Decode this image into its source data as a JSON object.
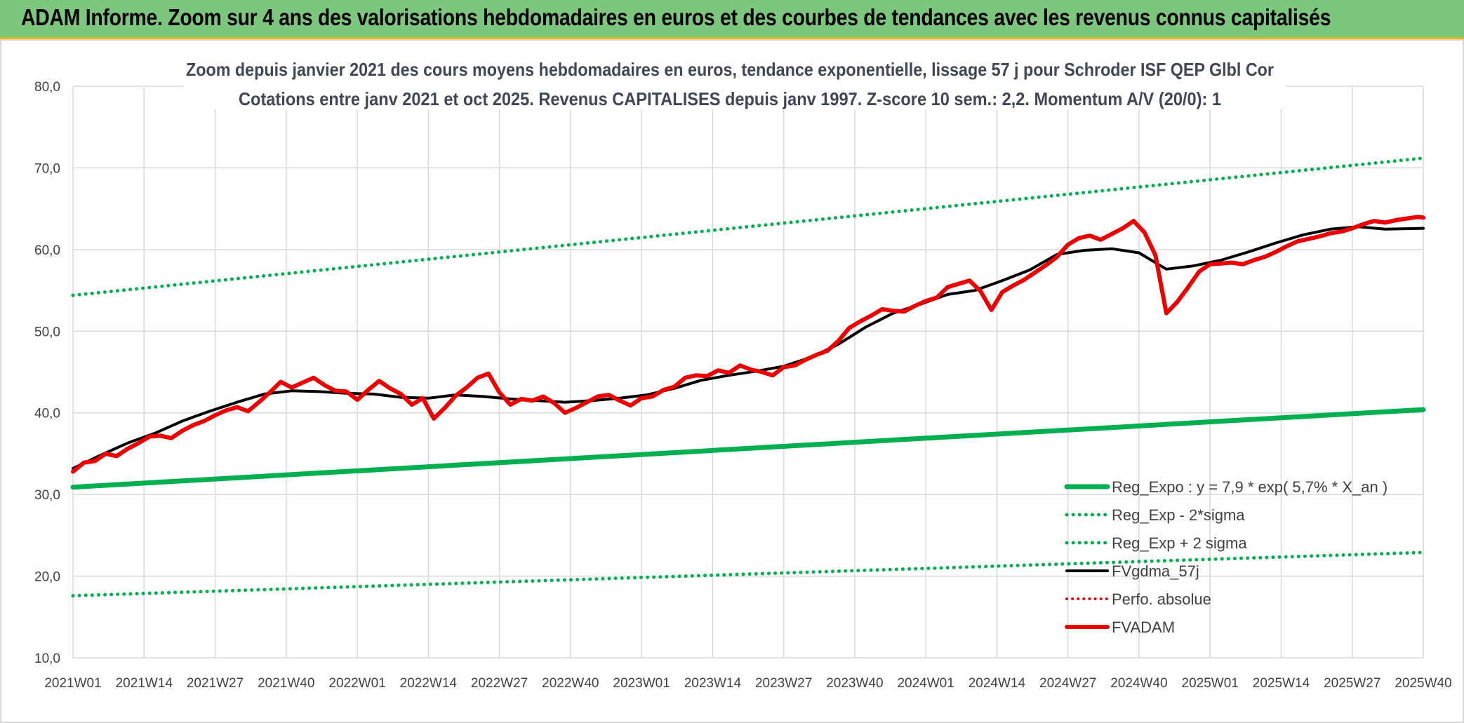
{
  "banner": {
    "title": "ADAM Informe. Zoom sur 4 ans des valorisations hebdomadaires en euros et des courbes de tendances avec les revenus connus capitalisés"
  },
  "colors": {
    "banner_bg": "#7dc67d",
    "green": "#00b050",
    "black": "#000000",
    "red": "#ee0000",
    "grid": "#d9d9d9"
  },
  "chart_data": {
    "type": "line",
    "title": "Zoom depuis janvier 2021 des cours moyens hebdomadaires en euros, tendance exponentielle, lissage 57 j pour Schroder ISF QEP Glbl Cor",
    "subtitle": "Cotations entre janv 2021 et oct 2025. Revenus CAPITALISES depuis janv 1997. Z-score 10 sem.: 2,2. Momentum A/V (20/0): 1",
    "ylim": [
      10,
      80
    ],
    "y_ticks": [
      "10,0",
      "20,0",
      "30,0",
      "40,0",
      "50,0",
      "60,0",
      "70,0",
      "80,0"
    ],
    "x_ticks": [
      "2021W01",
      "2021W14",
      "2021W27",
      "2021W40",
      "2022W01",
      "2022W14",
      "2022W27",
      "2022W40",
      "2023W01",
      "2023W14",
      "2023W27",
      "2023W40",
      "2024W01",
      "2024W14",
      "2024W27",
      "2024W40",
      "2025W01",
      "2025W14",
      "2025W27",
      "2025W40"
    ],
    "grid": true,
    "legend_position": "bottom-right",
    "series": [
      {
        "name": "Reg_Expo : y = 7,9 * exp( 5,7% *  X_an )",
        "style": "solid-thick-green",
        "x": [
          0,
          247
        ],
        "y": [
          30.9,
          40.4
        ]
      },
      {
        "name": "Reg_Exp - 2*sigma",
        "style": "dotted-green",
        "x": [
          0,
          247
        ],
        "y": [
          17.6,
          22.9
        ]
      },
      {
        "name": "Reg_Exp + 2 sigma",
        "style": "dotted-green",
        "x": [
          0,
          247
        ],
        "y": [
          54.4,
          71.2
        ]
      },
      {
        "name": "FVgdma_57j",
        "style": "solid-black",
        "x": [
          0,
          5,
          10,
          15,
          20,
          25,
          30,
          35,
          40,
          45,
          50,
          55,
          60,
          65,
          70,
          75,
          80,
          85,
          90,
          95,
          100,
          105,
          110,
          115,
          120,
          125,
          130,
          135,
          140,
          145,
          150,
          155,
          160,
          165,
          170,
          175,
          180,
          185,
          190,
          195,
          200,
          205,
          210,
          215,
          220,
          225,
          230,
          235,
          240,
          247
        ],
        "y": [
          33.2,
          34.8,
          36.3,
          37.5,
          39.0,
          40.2,
          41.3,
          42.3,
          42.7,
          42.6,
          42.4,
          42.3,
          41.9,
          41.8,
          42.2,
          42.0,
          41.7,
          41.5,
          41.3,
          41.5,
          41.8,
          42.2,
          43.0,
          44.0,
          44.6,
          45.1,
          45.7,
          46.8,
          48.4,
          50.5,
          52.2,
          53.3,
          54.5,
          55.0,
          56.2,
          57.5,
          59.4,
          59.9,
          60.1,
          59.6,
          57.6,
          58.0,
          58.7,
          59.7,
          60.8,
          61.8,
          62.5,
          62.8,
          62.5,
          62.6
        ]
      },
      {
        "name": "Perfo. absolue",
        "style": "dotted-red",
        "x": [],
        "y": []
      },
      {
        "name": "FVADAM",
        "style": "solid-thick-red",
        "x": [
          0,
          2,
          4,
          6,
          8,
          10,
          12,
          14,
          16,
          18,
          20,
          22,
          24,
          26,
          28,
          30,
          32,
          34,
          36,
          38,
          40,
          42,
          44,
          46,
          48,
          50,
          52,
          54,
          56,
          58,
          60,
          62,
          64,
          66,
          68,
          70,
          72,
          74,
          76,
          78,
          80,
          82,
          84,
          86,
          88,
          90,
          92,
          94,
          96,
          98,
          100,
          102,
          104,
          106,
          108,
          110,
          112,
          114,
          116,
          118,
          120,
          122,
          124,
          126,
          128,
          130,
          132,
          134,
          136,
          138,
          140,
          142,
          144,
          146,
          148,
          150,
          152,
          154,
          156,
          158,
          160,
          162,
          164,
          166,
          168,
          170,
          172,
          174,
          176,
          178,
          180,
          182,
          184,
          186,
          188,
          190,
          192,
          194,
          196,
          198,
          200,
          202,
          204,
          206,
          208,
          210,
          212,
          214,
          216,
          218,
          220,
          222,
          224,
          226,
          228,
          230,
          232,
          234,
          236,
          238,
          240,
          242,
          244,
          246,
          247
        ],
        "y": [
          32.8,
          33.9,
          34.1,
          35.0,
          34.7,
          35.6,
          36.3,
          37.1,
          37.2,
          36.9,
          37.8,
          38.5,
          39.0,
          39.7,
          40.3,
          40.7,
          40.2,
          41.3,
          42.5,
          43.8,
          43.1,
          43.7,
          44.3,
          43.4,
          42.7,
          42.6,
          41.6,
          42.8,
          43.9,
          43.0,
          42.3,
          41.0,
          41.8,
          39.3,
          40.6,
          42.1,
          43.1,
          44.3,
          44.8,
          42.5,
          41.0,
          41.7,
          41.5,
          42.0,
          41.2,
          40.0,
          40.6,
          41.3,
          42.0,
          42.2,
          41.5,
          40.9,
          41.8,
          42.0,
          42.8,
          43.2,
          44.3,
          44.6,
          44.5,
          45.2,
          44.9,
          45.8,
          45.3,
          45.0,
          44.6,
          45.6,
          45.8,
          46.5,
          47.1,
          47.6,
          48.8,
          50.4,
          51.2,
          51.9,
          52.7,
          52.5,
          52.4,
          53.1,
          53.7,
          54.1,
          55.4,
          55.8,
          56.2,
          54.9,
          52.6,
          54.8,
          55.6,
          56.3,
          57.2,
          58.1,
          59.1,
          60.6,
          61.4,
          61.7,
          61.2,
          61.9,
          62.6,
          63.5,
          62.1,
          59.3,
          52.2,
          53.6,
          55.4,
          57.3,
          58.2,
          58.3,
          58.4,
          58.2,
          58.7,
          59.1,
          59.7,
          60.4,
          61.0,
          61.3,
          61.6,
          62.0,
          62.2,
          62.6,
          63.1,
          63.5,
          63.3,
          63.6,
          63.8,
          64.0,
          63.9
        ]
      }
    ]
  }
}
